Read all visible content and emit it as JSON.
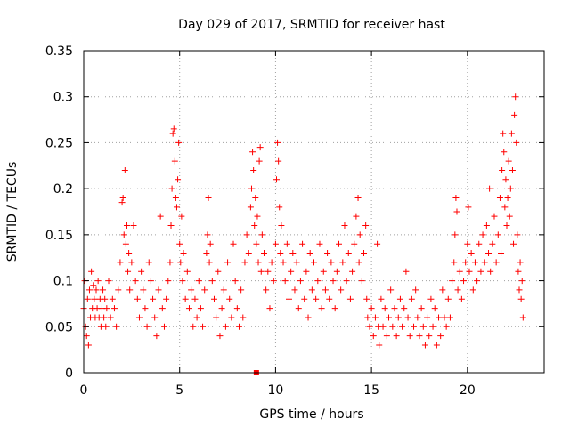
{
  "chart_data": {
    "type": "scatter",
    "title": "Day 029 of 2017, SRMTID for receiver hast",
    "xlabel": "GPS time / hours",
    "ylabel": "SRMTID / TECUs",
    "xlim": [
      0,
      24
    ],
    "ylim": [
      0,
      0.35
    ],
    "xticks": [
      0,
      5,
      10,
      15,
      20
    ],
    "xtick_labels": [
      "0",
      "5",
      "10",
      "15",
      "20"
    ],
    "yticks": [
      0,
      0.05,
      0.1,
      0.15,
      0.2,
      0.25,
      0.3,
      0.35
    ],
    "ytick_labels": [
      "0",
      "0.05",
      "0.1",
      "0.15",
      "0.2",
      "0.25",
      "0.3",
      "0.35"
    ],
    "grid": true,
    "marker": "plus",
    "color": "#ff0000",
    "series": [
      {
        "name": "SRMTID",
        "points": [
          [
            0.0,
            0.07
          ],
          [
            0.05,
            0.1
          ],
          [
            0.1,
            0.05
          ],
          [
            0.15,
            0.04
          ],
          [
            0.2,
            0.08
          ],
          [
            0.25,
            0.03
          ],
          [
            0.3,
            0.09
          ],
          [
            0.35,
            0.06
          ],
          [
            0.4,
            0.11
          ],
          [
            0.45,
            0.07
          ],
          [
            0.5,
            0.095
          ],
          [
            0.55,
            0.08
          ],
          [
            0.6,
            0.06
          ],
          [
            0.65,
            0.09
          ],
          [
            0.7,
            0.07
          ],
          [
            0.75,
            0.1
          ],
          [
            0.8,
            0.06
          ],
          [
            0.85,
            0.08
          ],
          [
            0.9,
            0.05
          ],
          [
            0.95,
            0.07
          ],
          [
            1.0,
            0.09
          ],
          [
            1.05,
            0.06
          ],
          [
            1.1,
            0.08
          ],
          [
            1.15,
            0.05
          ],
          [
            1.2,
            0.07
          ],
          [
            1.3,
            0.1
          ],
          [
            1.4,
            0.06
          ],
          [
            1.5,
            0.08
          ],
          [
            1.6,
            0.07
          ],
          [
            1.7,
            0.05
          ],
          [
            1.8,
            0.09
          ],
          [
            1.9,
            0.12
          ],
          [
            2.0,
            0.185
          ],
          [
            2.05,
            0.19
          ],
          [
            2.1,
            0.15
          ],
          [
            2.15,
            0.22
          ],
          [
            2.2,
            0.14
          ],
          [
            2.25,
            0.16
          ],
          [
            2.3,
            0.11
          ],
          [
            2.35,
            0.13
          ],
          [
            2.4,
            0.09
          ],
          [
            2.5,
            0.12
          ],
          [
            2.6,
            0.16
          ],
          [
            2.7,
            0.1
          ],
          [
            2.8,
            0.08
          ],
          [
            2.9,
            0.06
          ],
          [
            3.0,
            0.11
          ],
          [
            3.1,
            0.09
          ],
          [
            3.2,
            0.07
          ],
          [
            3.3,
            0.05
          ],
          [
            3.4,
            0.12
          ],
          [
            3.5,
            0.1
          ],
          [
            3.6,
            0.08
          ],
          [
            3.7,
            0.06
          ],
          [
            3.8,
            0.04
          ],
          [
            3.9,
            0.09
          ],
          [
            4.0,
            0.17
          ],
          [
            4.1,
            0.07
          ],
          [
            4.2,
            0.05
          ],
          [
            4.3,
            0.08
          ],
          [
            4.4,
            0.1
          ],
          [
            4.5,
            0.12
          ],
          [
            4.55,
            0.16
          ],
          [
            4.6,
            0.2
          ],
          [
            4.65,
            0.26
          ],
          [
            4.7,
            0.265
          ],
          [
            4.75,
            0.23
          ],
          [
            4.8,
            0.19
          ],
          [
            4.85,
            0.18
          ],
          [
            4.9,
            0.21
          ],
          [
            4.95,
            0.25
          ],
          [
            5.0,
            0.14
          ],
          [
            5.05,
            0.12
          ],
          [
            5.1,
            0.17
          ],
          [
            5.15,
            0.1
          ],
          [
            5.2,
            0.13
          ],
          [
            5.3,
            0.08
          ],
          [
            5.4,
            0.11
          ],
          [
            5.5,
            0.07
          ],
          [
            5.6,
            0.09
          ],
          [
            5.7,
            0.05
          ],
          [
            5.8,
            0.08
          ],
          [
            5.9,
            0.06
          ],
          [
            6.0,
            0.1
          ],
          [
            6.1,
            0.07
          ],
          [
            6.2,
            0.05
          ],
          [
            6.3,
            0.09
          ],
          [
            6.4,
            0.13
          ],
          [
            6.45,
            0.15
          ],
          [
            6.5,
            0.19
          ],
          [
            6.55,
            0.12
          ],
          [
            6.6,
            0.14
          ],
          [
            6.7,
            0.1
          ],
          [
            6.8,
            0.08
          ],
          [
            6.9,
            0.06
          ],
          [
            7.0,
            0.11
          ],
          [
            7.1,
            0.04
          ],
          [
            7.2,
            0.07
          ],
          [
            7.3,
            0.09
          ],
          [
            7.4,
            0.05
          ],
          [
            7.5,
            0.12
          ],
          [
            7.6,
            0.08
          ],
          [
            7.7,
            0.06
          ],
          [
            7.8,
            0.14
          ],
          [
            7.9,
            0.1
          ],
          [
            8.0,
            0.07
          ],
          [
            8.1,
            0.05
          ],
          [
            8.2,
            0.09
          ],
          [
            8.3,
            0.06
          ],
          [
            8.4,
            0.12
          ],
          [
            8.5,
            0.15
          ],
          [
            8.6,
            0.13
          ],
          [
            8.7,
            0.18
          ],
          [
            8.75,
            0.2
          ],
          [
            8.8,
            0.24
          ],
          [
            8.85,
            0.22
          ],
          [
            8.9,
            0.16
          ],
          [
            8.95,
            0.19
          ],
          [
            9.0,
            0.14
          ],
          [
            9.05,
            0.17
          ],
          [
            9.1,
            0.12
          ],
          [
            9.15,
            0.23
          ],
          [
            9.2,
            0.245
          ],
          [
            9.25,
            0.11
          ],
          [
            9.3,
            0.15
          ],
          [
            9.4,
            0.13
          ],
          [
            9.5,
            0.09
          ],
          [
            9.6,
            0.11
          ],
          [
            9.7,
            0.07
          ],
          [
            9.8,
            0.12
          ],
          [
            9.9,
            0.1
          ],
          [
            10.0,
            0.14
          ],
          [
            10.05,
            0.21
          ],
          [
            10.1,
            0.25
          ],
          [
            10.15,
            0.23
          ],
          [
            10.2,
            0.18
          ],
          [
            10.25,
            0.13
          ],
          [
            10.3,
            0.16
          ],
          [
            10.4,
            0.12
          ],
          [
            10.5,
            0.1
          ],
          [
            10.6,
            0.14
          ],
          [
            10.7,
            0.08
          ],
          [
            10.8,
            0.11
          ],
          [
            10.9,
            0.13
          ],
          [
            11.0,
            0.09
          ],
          [
            11.1,
            0.12
          ],
          [
            11.2,
            0.07
          ],
          [
            11.3,
            0.1
          ],
          [
            11.4,
            0.14
          ],
          [
            11.5,
            0.08
          ],
          [
            11.6,
            0.11
          ],
          [
            11.7,
            0.06
          ],
          [
            11.8,
            0.13
          ],
          [
            11.9,
            0.09
          ],
          [
            12.0,
            0.12
          ],
          [
            12.1,
            0.08
          ],
          [
            12.2,
            0.1
          ],
          [
            12.3,
            0.14
          ],
          [
            12.4,
            0.07
          ],
          [
            12.5,
            0.11
          ],
          [
            12.6,
            0.09
          ],
          [
            12.7,
            0.13
          ],
          [
            12.8,
            0.08
          ],
          [
            12.9,
            0.12
          ],
          [
            13.0,
            0.1
          ],
          [
            13.1,
            0.07
          ],
          [
            13.2,
            0.11
          ],
          [
            13.3,
            0.14
          ],
          [
            13.4,
            0.09
          ],
          [
            13.5,
            0.12
          ],
          [
            13.6,
            0.16
          ],
          [
            13.7,
            0.1
          ],
          [
            13.8,
            0.13
          ],
          [
            13.9,
            0.08
          ],
          [
            14.0,
            0.11
          ],
          [
            14.1,
            0.14
          ],
          [
            14.2,
            0.17
          ],
          [
            14.3,
            0.19
          ],
          [
            14.35,
            0.12
          ],
          [
            14.4,
            0.15
          ],
          [
            14.5,
            0.1
          ],
          [
            14.6,
            0.13
          ],
          [
            14.7,
            0.16
          ],
          [
            14.75,
            0.08
          ],
          [
            14.8,
            0.06
          ],
          [
            14.9,
            0.05
          ],
          [
            15.0,
            0.07
          ],
          [
            15.1,
            0.04
          ],
          [
            15.2,
            0.06
          ],
          [
            15.3,
            0.14
          ],
          [
            15.35,
            0.05
          ],
          [
            15.4,
            0.03
          ],
          [
            15.5,
            0.08
          ],
          [
            15.6,
            0.05
          ],
          [
            15.7,
            0.07
          ],
          [
            15.8,
            0.04
          ],
          [
            15.9,
            0.06
          ],
          [
            16.0,
            0.09
          ],
          [
            16.1,
            0.05
          ],
          [
            16.2,
            0.07
          ],
          [
            16.3,
            0.04
          ],
          [
            16.4,
            0.06
          ],
          [
            16.5,
            0.08
          ],
          [
            16.6,
            0.05
          ],
          [
            16.7,
            0.07
          ],
          [
            16.8,
            0.11
          ],
          [
            16.9,
            0.06
          ],
          [
            17.0,
            0.04
          ],
          [
            17.1,
            0.08
          ],
          [
            17.2,
            0.05
          ],
          [
            17.3,
            0.09
          ],
          [
            17.4,
            0.06
          ],
          [
            17.5,
            0.04
          ],
          [
            17.6,
            0.07
          ],
          [
            17.7,
            0.05
          ],
          [
            17.8,
            0.03
          ],
          [
            17.9,
            0.06
          ],
          [
            18.0,
            0.04
          ],
          [
            18.1,
            0.08
          ],
          [
            18.2,
            0.05
          ],
          [
            18.3,
            0.07
          ],
          [
            18.4,
            0.03
          ],
          [
            18.5,
            0.06
          ],
          [
            18.6,
            0.04
          ],
          [
            18.7,
            0.09
          ],
          [
            18.8,
            0.06
          ],
          [
            18.9,
            0.05
          ],
          [
            19.0,
            0.08
          ],
          [
            19.1,
            0.06
          ],
          [
            19.2,
            0.1
          ],
          [
            19.3,
            0.12
          ],
          [
            19.35,
            0.15
          ],
          [
            19.4,
            0.19
          ],
          [
            19.45,
            0.175
          ],
          [
            19.5,
            0.09
          ],
          [
            19.6,
            0.11
          ],
          [
            19.7,
            0.08
          ],
          [
            19.8,
            0.1
          ],
          [
            19.9,
            0.12
          ],
          [
            20.0,
            0.14
          ],
          [
            20.05,
            0.18
          ],
          [
            20.1,
            0.11
          ],
          [
            20.2,
            0.13
          ],
          [
            20.3,
            0.09
          ],
          [
            20.4,
            0.12
          ],
          [
            20.5,
            0.1
          ],
          [
            20.6,
            0.14
          ],
          [
            20.7,
            0.11
          ],
          [
            20.8,
            0.15
          ],
          [
            20.9,
            0.12
          ],
          [
            21.0,
            0.16
          ],
          [
            21.1,
            0.13
          ],
          [
            21.15,
            0.2
          ],
          [
            21.2,
            0.11
          ],
          [
            21.3,
            0.14
          ],
          [
            21.4,
            0.17
          ],
          [
            21.5,
            0.12
          ],
          [
            21.6,
            0.15
          ],
          [
            21.7,
            0.19
          ],
          [
            21.75,
            0.13
          ],
          [
            21.8,
            0.22
          ],
          [
            21.85,
            0.26
          ],
          [
            21.9,
            0.24
          ],
          [
            21.95,
            0.18
          ],
          [
            22.0,
            0.21
          ],
          [
            22.05,
            0.16
          ],
          [
            22.1,
            0.19
          ],
          [
            22.15,
            0.23
          ],
          [
            22.2,
            0.17
          ],
          [
            22.25,
            0.2
          ],
          [
            22.3,
            0.26
          ],
          [
            22.35,
            0.22
          ],
          [
            22.4,
            0.14
          ],
          [
            22.45,
            0.28
          ],
          [
            22.5,
            0.3
          ],
          [
            22.55,
            0.25
          ],
          [
            22.6,
            0.15
          ],
          [
            22.65,
            0.11
          ],
          [
            22.7,
            0.09
          ],
          [
            22.75,
            0.12
          ],
          [
            22.8,
            0.08
          ],
          [
            22.85,
            0.1
          ],
          [
            22.9,
            0.06
          ]
        ]
      }
    ],
    "outlier_marker": {
      "x": 9.0,
      "y": 0.0,
      "shape": "square"
    }
  }
}
